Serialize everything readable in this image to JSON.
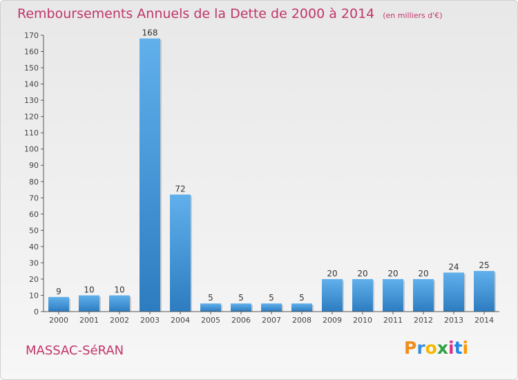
{
  "title": "Remboursements Annuels de la Dette de 2000 à 2014",
  "unit_note": "(en milliers d'€)",
  "commune": "MASSAC-SéRAN",
  "logo": {
    "letters": [
      "P",
      "r",
      "o",
      "x",
      "i",
      "t",
      "i"
    ],
    "colors": [
      "#f08c1a",
      "#3a8fd8",
      "#f5b800",
      "#2ea043",
      "#d63384",
      "#1e88e5",
      "#ff9800"
    ]
  },
  "colors": {
    "title": "#c0356a",
    "bar_top": "#61b0ec",
    "bar_bottom": "#2d7cc0"
  },
  "chart_data": {
    "type": "bar",
    "categories": [
      "2000",
      "2001",
      "2002",
      "2003",
      "2004",
      "2005",
      "2006",
      "2007",
      "2008",
      "2009",
      "2010",
      "2011",
      "2012",
      "2013",
      "2014"
    ],
    "values": [
      9,
      10,
      10,
      168,
      72,
      5,
      5,
      5,
      5,
      20,
      20,
      20,
      20,
      24,
      25
    ],
    "ylim": [
      0,
      170
    ],
    "yticks": [
      0,
      10,
      20,
      30,
      40,
      50,
      60,
      70,
      80,
      90,
      100,
      110,
      120,
      130,
      140,
      150,
      160,
      170
    ],
    "grid": false,
    "legend": "none"
  }
}
